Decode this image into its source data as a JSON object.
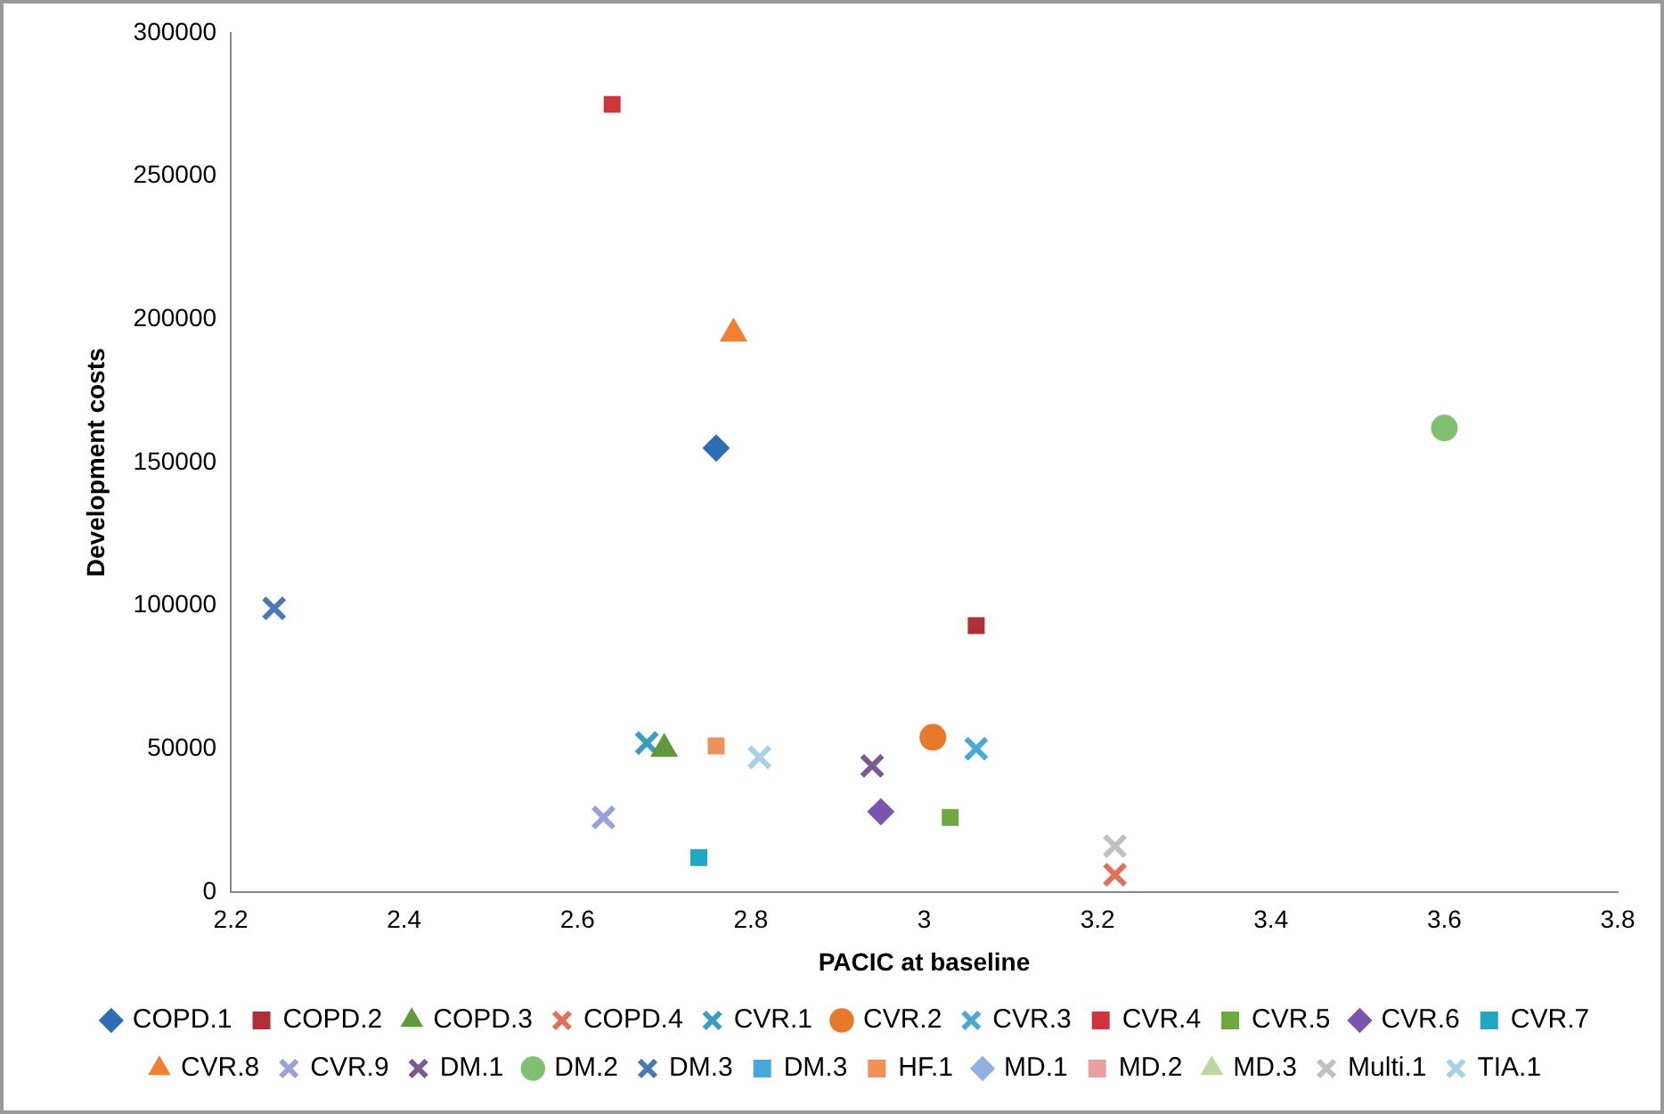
{
  "chart_data": {
    "type": "scatter",
    "xlabel": "PACIC at baseline",
    "ylabel": "Development costs",
    "xlim": [
      2.2,
      3.8
    ],
    "xticks": [
      2.2,
      2.4,
      2.6,
      2.8,
      3,
      3.2,
      3.4,
      3.6,
      3.8
    ],
    "ylim": [
      0,
      300000
    ],
    "yticks": [
      0,
      50000,
      100000,
      150000,
      200000,
      250000,
      300000
    ],
    "grid": false,
    "legend": "bottom",
    "series": [
      {
        "name": "COPD.1",
        "color": "#2e6db4",
        "marker": "diamond",
        "x": [
          2.76
        ],
        "values": [
          155000
        ]
      },
      {
        "name": "COPD.2",
        "color": "#b0303a",
        "marker": "square",
        "x": [
          3.06
        ],
        "values": [
          93000
        ]
      },
      {
        "name": "COPD.3",
        "color": "#5e9a3a",
        "marker": "triangle",
        "x": [
          2.7
        ],
        "values": [
          50000
        ]
      },
      {
        "name": "COPD.4",
        "color": "#e0705a",
        "marker": "cross",
        "x": [
          3.22
        ],
        "values": [
          6000
        ]
      },
      {
        "name": "CVR.1",
        "color": "#3a9ec0",
        "marker": "cross",
        "x": [
          2.68
        ],
        "values": [
          52000
        ]
      },
      {
        "name": "CVR.2",
        "color": "#e8782a",
        "marker": "circle",
        "x": [
          3.01
        ],
        "values": [
          54000
        ]
      },
      {
        "name": "CVR.3",
        "color": "#4aa8d8",
        "marker": "cross",
        "x": [
          3.06
        ],
        "values": [
          50000
        ]
      },
      {
        "name": "CVR.4",
        "color": "#d0343c",
        "marker": "square",
        "x": [
          2.64
        ],
        "values": [
          275000
        ]
      },
      {
        "name": "CVR.5",
        "color": "#70a840",
        "marker": "square",
        "x": [
          3.03
        ],
        "values": [
          26000
        ]
      },
      {
        "name": "CVR.6",
        "color": "#7a55b0",
        "marker": "diamond",
        "x": [
          2.95
        ],
        "values": [
          28000
        ]
      },
      {
        "name": "CVR.7",
        "color": "#20a8c0",
        "marker": "square",
        "x": [
          2.74
        ],
        "values": [
          12000
        ]
      },
      {
        "name": "CVR.8",
        "color": "#f08030",
        "marker": "triangle",
        "x": [
          2.78
        ],
        "values": [
          195000
        ]
      },
      {
        "name": "CVR.9",
        "color": "#9aa0d8",
        "marker": "cross",
        "x": [
          2.63
        ],
        "values": [
          26000
        ]
      },
      {
        "name": "DM.1",
        "color": "#7a5a90",
        "marker": "cross",
        "x": [
          2.94
        ],
        "values": [
          44000
        ]
      },
      {
        "name": "DM.2",
        "color": "#80c070",
        "marker": "circle",
        "x": [
          3.6
        ],
        "values": [
          162000
        ]
      },
      {
        "name": "DM.3",
        "color": "#4a78b8",
        "marker": "cross",
        "x": [
          2.25
        ],
        "values": [
          99000
        ]
      },
      {
        "name": "DM.3",
        "color": "#4aa8d8",
        "marker": "square",
        "x": [
          null
        ],
        "values": [
          null
        ]
      },
      {
        "name": "HF.1",
        "color": "#f0905a",
        "marker": "square",
        "x": [
          2.76
        ],
        "values": [
          51000
        ]
      },
      {
        "name": "MD.1",
        "color": "#90b0e0",
        "marker": "diamond",
        "x": [
          null
        ],
        "values": [
          null
        ]
      },
      {
        "name": "MD.2",
        "color": "#e8a0a0",
        "marker": "square",
        "x": [
          null
        ],
        "values": [
          null
        ]
      },
      {
        "name": "MD.3",
        "color": "#b8d8a0",
        "marker": "triangle",
        "x": [
          null
        ],
        "values": [
          null
        ]
      },
      {
        "name": "Multi.1",
        "color": "#c0c0c0",
        "marker": "cross",
        "x": [
          3.22
        ],
        "values": [
          16000
        ]
      },
      {
        "name": "TIA.1",
        "color": "#a8d0e8",
        "marker": "cross",
        "x": [
          2.81
        ],
        "values": [
          47000
        ]
      }
    ]
  }
}
